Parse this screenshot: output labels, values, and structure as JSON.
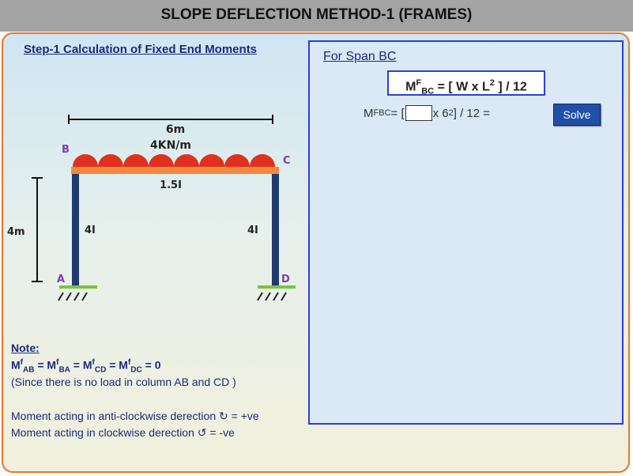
{
  "header": {
    "title": "SLOPE DEFLECTION METHOD-1 (FRAMES)"
  },
  "step": {
    "title": "Step-1 Calculation of Fixed End Moments"
  },
  "diagram": {
    "span_length": "6m",
    "load": "4KN/m",
    "beam_inertia": "1.5I",
    "column_inertia_left": "4I",
    "column_inertia_right": "4I",
    "height": "4m",
    "node_a": "A",
    "node_b": "B",
    "node_c": "C",
    "node_d": "D",
    "colors": {
      "beam": "#f08a3e",
      "load": "#e0301e",
      "column": "#1f3b6e",
      "support": "#7cc242",
      "label": "#7a3fb0"
    }
  },
  "note": {
    "title": "Note:",
    "eq_line": {
      "m1": "M",
      "s1": "f",
      "b1": "AB",
      "m2": " = M",
      "s2": "f",
      "b2": "BA",
      "m3": " = M",
      "s3": "f",
      "b3": "CD",
      "m4": " = M",
      "s4": "f",
      "b4": "DC",
      "tail": " = 0"
    },
    "reason": "(Since there is no load in column AB and CD )",
    "anticlockwise": "Moment acting in anti-clockwise derection ↻ = +ve",
    "clockwise": "Moment acting in clockwise derection ↺ = -ve"
  },
  "right_panel": {
    "span_title": "For Span BC",
    "formula": {
      "m": "M",
      "sup": "F",
      "sub": "BC",
      "rest": " = [ W x L",
      "pow": "2",
      "tail": " ] / 12"
    },
    "equation": {
      "m": "M",
      "sup": "F",
      "sub": "BC",
      "lead": " = [",
      "mid": "x 6",
      "pow": "2",
      "tail": " ] / 12 ="
    },
    "input_value": "",
    "solve_label": "Solve"
  }
}
